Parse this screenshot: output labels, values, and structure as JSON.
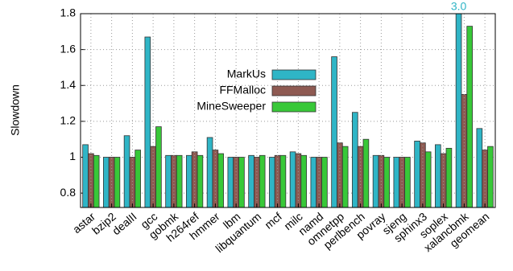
{
  "chart_data": {
    "type": "bar",
    "y_label": "Slowdown",
    "categories": [
      "astar",
      "bzip2",
      "dealII",
      "gcc",
      "gobmk",
      "h264ref",
      "hmmer",
      "lbm",
      "libquantum",
      "mcf",
      "milc",
      "namd",
      "omnetpp",
      "perlbench",
      "povray",
      "sjeng",
      "sphinx3",
      "soplex",
      "xalancbmk",
      "geomean"
    ],
    "series": [
      {
        "name": "MarkUs",
        "color": "#2fb5c6",
        "values": [
          1.07,
          1.0,
          1.12,
          1.67,
          1.01,
          1.01,
          1.11,
          1.0,
          1.01,
          1.0,
          1.03,
          1.0,
          1.56,
          1.25,
          1.01,
          1.0,
          1.09,
          1.07,
          3.0,
          1.16
        ],
        "value_labels": [
          null,
          null,
          null,
          null,
          null,
          null,
          null,
          null,
          null,
          null,
          null,
          null,
          null,
          null,
          null,
          null,
          null,
          null,
          "3.0",
          null
        ]
      },
      {
        "name": "FFMalloc",
        "color": "#8e5a52",
        "values": [
          1.02,
          1.0,
          1.0,
          1.06,
          1.01,
          1.03,
          1.04,
          1.0,
          1.0,
          1.01,
          1.02,
          1.0,
          1.08,
          1.06,
          1.01,
          1.0,
          1.08,
          1.02,
          1.35,
          1.04
        ]
      },
      {
        "name": "MineSweeper",
        "color": "#38c838",
        "values": [
          1.01,
          1.0,
          1.04,
          1.17,
          1.01,
          1.01,
          1.02,
          1.0,
          1.01,
          1.01,
          1.01,
          1.0,
          1.06,
          1.1,
          1.0,
          1.0,
          1.03,
          1.05,
          1.73,
          1.06
        ]
      }
    ],
    "ylim": [
      0.72,
      1.8
    ],
    "yticks": [
      0.8,
      1,
      1.2,
      1.4,
      1.6,
      1.8
    ],
    "grid": true,
    "legend": "top"
  }
}
